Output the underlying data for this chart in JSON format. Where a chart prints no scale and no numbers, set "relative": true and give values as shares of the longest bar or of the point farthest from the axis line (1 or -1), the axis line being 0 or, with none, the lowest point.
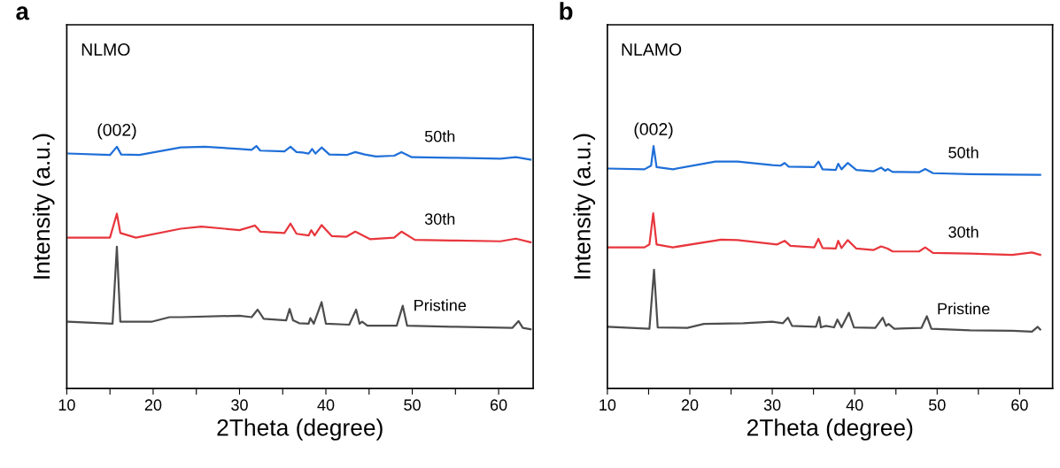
{
  "chart_data": [
    {
      "type": "line",
      "title": "NLMO",
      "xlabel": "2Theta (degree)",
      "ylabel": "Intensity (a.u.)",
      "relative": true,
      "grid": false,
      "legend": false,
      "tick_labels": "x",
      "xlim": [
        10,
        64
      ],
      "xticks": [
        10,
        {
          "value": 15,
          "label": null
        },
        20,
        {
          "value": 25,
          "label": null
        },
        30,
        {
          "value": 35,
          "label": null
        },
        40,
        {
          "value": 45,
          "label": null
        },
        50,
        {
          "value": 55,
          "label": null
        },
        60
      ],
      "annotations": [
        "a",
        {
          "text": "(002)",
          "x": 15.8,
          "y": 0.997
        }
      ],
      "series": [
        {
          "name": "50th",
          "color": "#1f6fd8",
          "x": [
            10.2,
            15.0,
            15.8,
            16.3,
            18.4,
            23.2,
            26.0,
            30.0,
            31.4,
            31.95,
            32.4,
            35.2,
            35.9,
            36.6,
            37.3,
            38.0,
            38.4,
            38.8,
            39.5,
            40.4,
            42.4,
            43.4,
            44.5,
            45.8,
            47.9,
            48.75,
            49.95,
            55.1,
            60.2,
            62.0,
            63.7
          ],
          "values": [
            0.969,
            0.963,
            0.997,
            0.965,
            0.963,
            0.994,
            0.997,
            0.988,
            0.984,
            1.0,
            0.981,
            0.978,
            0.997,
            0.975,
            0.973,
            0.969,
            0.988,
            0.969,
            0.994,
            0.965,
            0.963,
            0.975,
            0.965,
            0.957,
            0.96,
            0.975,
            0.954,
            0.951,
            0.948,
            0.954,
            0.944
          ]
        },
        {
          "name": "30th",
          "color": "#e8363d",
          "x": [
            10.2,
            15.0,
            15.8,
            16.2,
            18.0,
            23.2,
            25.6,
            30.0,
            31.8,
            32.4,
            35.2,
            35.9,
            36.6,
            38.0,
            38.3,
            38.7,
            39.5,
            40.7,
            42.4,
            43.4,
            45.1,
            47.9,
            48.75,
            50.3,
            55.1,
            60.2,
            62.0,
            63.7
          ],
          "values": [
            0.622,
            0.622,
            0.721,
            0.641,
            0.622,
            0.659,
            0.668,
            0.653,
            0.672,
            0.647,
            0.641,
            0.68,
            0.638,
            0.631,
            0.653,
            0.631,
            0.674,
            0.628,
            0.626,
            0.647,
            0.616,
            0.622,
            0.647,
            0.613,
            0.61,
            0.607,
            0.618,
            0.603
          ]
        },
        {
          "name": "Pristine",
          "color": "#4d4d4d",
          "x": [
            10.2,
            15.3,
            15.8,
            16.2,
            19.8,
            21.9,
            23.2,
            30.0,
            31.4,
            32.1,
            32.8,
            35.4,
            35.8,
            36.2,
            36.9,
            38.0,
            38.2,
            38.6,
            39.5,
            40.0,
            42.7,
            43.5,
            43.9,
            44.2,
            44.8,
            48.2,
            48.9,
            49.4,
            55.1,
            61.6,
            62.3,
            62.8,
            63.7
          ],
          "values": [
            0.275,
            0.267,
            0.585,
            0.275,
            0.275,
            0.294,
            0.294,
            0.3,
            0.294,
            0.325,
            0.287,
            0.281,
            0.328,
            0.281,
            0.269,
            0.267,
            0.29,
            0.267,
            0.356,
            0.267,
            0.263,
            0.325,
            0.267,
            0.275,
            0.259,
            0.259,
            0.341,
            0.259,
            0.254,
            0.25,
            0.278,
            0.25,
            0.244
          ]
        }
      ]
    },
    {
      "type": "line",
      "title": "NLAMO",
      "xlabel": "2Theta (degree)",
      "ylabel": "Intensity (a.u.)",
      "relative": true,
      "grid": false,
      "legend": false,
      "tick_labels": "x",
      "xlim": [
        10,
        64
      ],
      "xticks": [
        10,
        {
          "value": 15,
          "label": null
        },
        20,
        {
          "value": 25,
          "label": null
        },
        30,
        {
          "value": 35,
          "label": null
        },
        40,
        {
          "value": 45,
          "label": null
        },
        50,
        {
          "value": 55,
          "label": null
        },
        60
      ],
      "annotations": [
        "b",
        {
          "text": "(002)",
          "x": 15.6,
          "y": 1.0
        }
      ],
      "series": [
        {
          "name": "50th",
          "color": "#1f6fd8",
          "x": [
            10.1,
            14.5,
            15.3,
            15.6,
            15.97,
            17.95,
            23.1,
            25.8,
            30.0,
            31.0,
            31.5,
            32.0,
            35.1,
            35.6,
            36.1,
            37.7,
            38.0,
            38.4,
            39.15,
            40.2,
            42.3,
            43.2,
            43.7,
            44.0,
            44.6,
            47.8,
            48.55,
            49.5,
            54.0,
            59.1,
            62.5
          ],
          "values": [
            0.907,
            0.904,
            0.919,
            1.0,
            0.913,
            0.904,
            0.936,
            0.936,
            0.921,
            0.919,
            0.93,
            0.915,
            0.913,
            0.936,
            0.904,
            0.901,
            0.927,
            0.904,
            0.93,
            0.901,
            0.896,
            0.911,
            0.898,
            0.905,
            0.893,
            0.892,
            0.905,
            0.888,
            0.884,
            0.882,
            0.881
          ]
        },
        {
          "name": "30th",
          "color": "#e8363d",
          "x": [
            10.1,
            14.5,
            15.1,
            15.56,
            15.97,
            17.95,
            23.8,
            25.8,
            30.6,
            31.5,
            32.2,
            35.1,
            35.6,
            36.1,
            37.7,
            38.0,
            38.4,
            39.15,
            40.2,
            42.3,
            43.2,
            44.0,
            44.6,
            47.8,
            48.55,
            49.5,
            54.0,
            59.1,
            61.5,
            62.5
          ],
          "values": [
            0.582,
            0.582,
            0.594,
            0.722,
            0.594,
            0.582,
            0.614,
            0.612,
            0.594,
            0.609,
            0.588,
            0.582,
            0.617,
            0.579,
            0.577,
            0.609,
            0.579,
            0.612,
            0.577,
            0.571,
            0.586,
            0.577,
            0.565,
            0.565,
            0.582,
            0.559,
            0.556,
            0.551,
            0.561,
            0.551
          ]
        },
        {
          "name": "Pristine",
          "color": "#4d4d4d",
          "x": [
            10.1,
            15.1,
            15.66,
            16.1,
            19.7,
            21.7,
            26.5,
            30.0,
            31.3,
            31.9,
            32.4,
            35.3,
            35.7,
            35.9,
            36.5,
            37.5,
            37.9,
            38.4,
            39.3,
            39.9,
            42.5,
            43.4,
            43.8,
            44.1,
            44.8,
            48.1,
            48.75,
            49.3,
            54.0,
            59.1,
            61.5,
            62.2,
            62.5
          ],
          "values": [
            0.254,
            0.246,
            0.49,
            0.252,
            0.25,
            0.266,
            0.269,
            0.275,
            0.269,
            0.292,
            0.258,
            0.254,
            0.295,
            0.252,
            0.258,
            0.252,
            0.284,
            0.252,
            0.312,
            0.252,
            0.25,
            0.292,
            0.258,
            0.266,
            0.246,
            0.25,
            0.298,
            0.246,
            0.24,
            0.238,
            0.234,
            0.254,
            0.243
          ]
        }
      ]
    }
  ]
}
